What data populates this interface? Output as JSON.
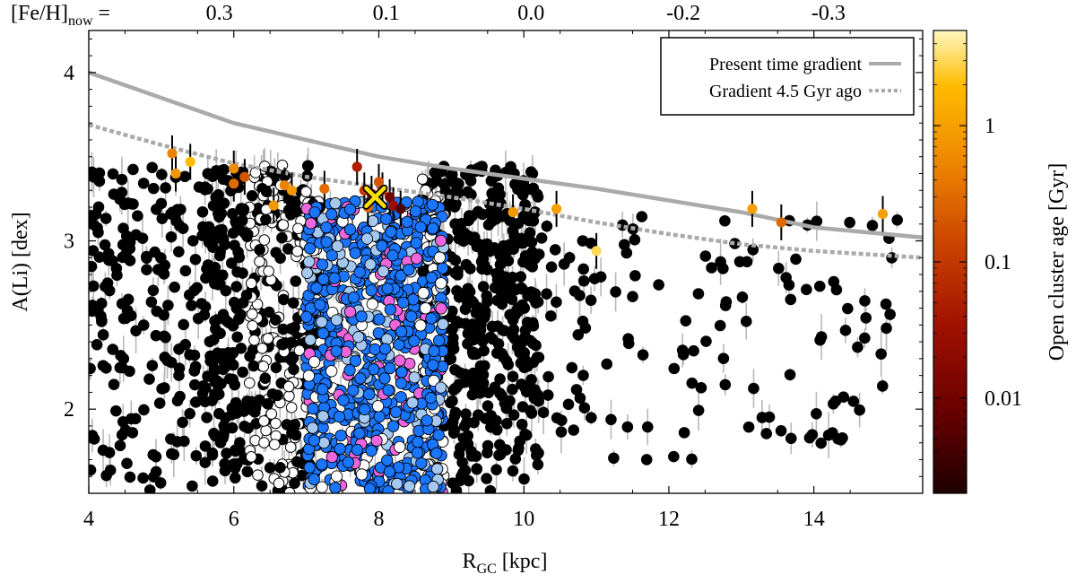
{
  "chart_data": {
    "type": "scatter",
    "title": "",
    "xlabel_main": "R",
    "xlabel_sub": "GC",
    "xlabel_unit": " [kpc]",
    "ylabel": "A(Li) [dex]",
    "xlim": [
      4,
      15.5
    ],
    "ylim": [
      1.5,
      4.25
    ],
    "x_ticks": [
      4,
      6,
      8,
      10,
      12,
      14
    ],
    "y_ticks": [
      2,
      3,
      4
    ],
    "top_axis": {
      "label_main": "[Fe/H]",
      "label_sub": "now",
      "label_eq": " =",
      "ticks": [
        {
          "x": 5.8,
          "label": "0.3"
        },
        {
          "x": 8.1,
          "label": "0.1"
        },
        {
          "x": 10.1,
          "label": "0.0"
        },
        {
          "x": 12.2,
          "label": "-0.2"
        },
        {
          "x": 14.2,
          "label": "-0.3"
        }
      ]
    },
    "colorbar": {
      "label": "Open cluster age [Gyr]",
      "scale": "log",
      "range": [
        0.002,
        5
      ],
      "ticks": [
        {
          "value": 1,
          "label": "1"
        },
        {
          "value": 0.1,
          "label": "0.1"
        },
        {
          "value": 0.01,
          "label": "0.01"
        }
      ],
      "colors": [
        "#2a0000",
        "#8b0000",
        "#b22200",
        "#d35400",
        "#f08c00",
        "#ffc000",
        "#fff3b0"
      ]
    },
    "legend": {
      "position": "top-right",
      "entries": [
        {
          "label": "Present time gradient",
          "style": "solid",
          "color": "#aaaaaa"
        },
        {
          "label": "Gradient 4.5 Gyr ago",
          "style": "dotted",
          "color": "#aaaaaa"
        }
      ]
    },
    "series": [
      {
        "name": "Present time gradient",
        "kind": "line",
        "color": "#aaaaaa",
        "dash": "none",
        "points": [
          [
            4.0,
            4.0
          ],
          [
            5.0,
            3.85
          ],
          [
            6.0,
            3.7
          ],
          [
            7.0,
            3.6
          ],
          [
            8.0,
            3.5
          ],
          [
            9.0,
            3.43
          ],
          [
            10.0,
            3.37
          ],
          [
            11.0,
            3.31
          ],
          [
            12.0,
            3.24
          ],
          [
            13.0,
            3.17
          ],
          [
            14.0,
            3.08
          ],
          [
            15.5,
            3.02
          ]
        ]
      },
      {
        "name": "Gradient 4.5 Gyr ago",
        "kind": "line",
        "color": "#aaaaaa",
        "dash": "dotted",
        "points": [
          [
            4.0,
            3.69
          ],
          [
            5.0,
            3.57
          ],
          [
            6.0,
            3.46
          ],
          [
            7.0,
            3.38
          ],
          [
            8.0,
            3.32
          ],
          [
            9.0,
            3.26
          ],
          [
            10.0,
            3.19
          ],
          [
            11.0,
            3.11
          ],
          [
            12.0,
            3.04
          ],
          [
            13.0,
            2.98
          ],
          [
            14.0,
            2.94
          ],
          [
            15.5,
            2.9
          ]
        ]
      },
      {
        "name": "Sun",
        "kind": "marker",
        "marker": "x",
        "color": "#ffe000",
        "points": [
          [
            7.95,
            3.26
          ]
        ]
      },
      {
        "name": "Open clusters",
        "kind": "colored-points",
        "points": [
          [
            5.15,
            3.52,
            0.5
          ],
          [
            5.2,
            3.4,
            0.8
          ],
          [
            5.4,
            3.47,
            2.0
          ],
          [
            6.0,
            3.43,
            0.6
          ],
          [
            6.0,
            3.34,
            0.3
          ],
          [
            6.15,
            3.38,
            0.2
          ],
          [
            6.55,
            3.21,
            0.8
          ],
          [
            6.7,
            3.33,
            0.5
          ],
          [
            6.8,
            3.3,
            0.8
          ],
          [
            7.25,
            3.31,
            0.3
          ],
          [
            7.7,
            3.44,
            0.05
          ],
          [
            7.8,
            3.3,
            0.1
          ],
          [
            7.9,
            3.28,
            0.03
          ],
          [
            8.0,
            3.35,
            0.2
          ],
          [
            8.05,
            3.3,
            0.1
          ],
          [
            8.15,
            3.26,
            0.01
          ],
          [
            8.2,
            3.21,
            0.03
          ],
          [
            8.3,
            3.19,
            0.005
          ],
          [
            7.85,
            3.2,
            0.3
          ],
          [
            9.85,
            3.17,
            0.8
          ],
          [
            10.45,
            3.19,
            1.0
          ],
          [
            11.0,
            2.94,
            3.0
          ],
          [
            13.15,
            3.19,
            1.0
          ],
          [
            13.55,
            3.11,
            0.3
          ],
          [
            14.95,
            3.16,
            1.0
          ]
        ]
      },
      {
        "name": "Field stars",
        "kind": "scatter",
        "color": "#000000",
        "points": "dense cloud spanning R_GC 4-15.3 kpc, A(Li) 1.5-3.5 dex"
      },
      {
        "name": "Solar-neighbourhood sample",
        "kind": "scatter",
        "colors": [
          "#1a75ff",
          "#a5c8f0",
          "#ee66dd",
          "#ffffff"
        ],
        "points": "dense column R_GC 7.0-8.9 kpc, A(Li) 1.5-3.3 dex"
      }
    ]
  }
}
